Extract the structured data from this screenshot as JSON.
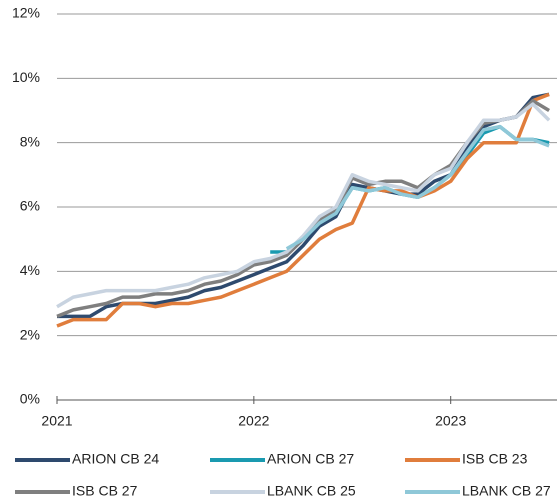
{
  "chart_data": {
    "type": "line",
    "x": [
      2021,
      2021.083,
      2021.167,
      2021.25,
      2021.333,
      2021.417,
      2021.5,
      2021.583,
      2021.667,
      2021.75,
      2021.833,
      2021.917,
      2022,
      2022.083,
      2022.167,
      2022.25,
      2022.333,
      2022.417,
      2022.5,
      2022.583,
      2022.667,
      2022.75,
      2022.833,
      2022.917,
      2023,
      2023.083,
      2023.167,
      2023.25,
      2023.333,
      2023.417,
      2023.5
    ],
    "series": [
      {
        "name": "ARION CB 24",
        "color": "#2e4a6e",
        "values": [
          2.6,
          2.6,
          2.6,
          2.9,
          3.0,
          3.0,
          3.0,
          3.1,
          3.2,
          3.4,
          3.5,
          3.7,
          3.9,
          4.1,
          4.3,
          4.8,
          5.4,
          5.7,
          6.7,
          6.6,
          6.5,
          6.4,
          6.4,
          6.8,
          7.0,
          7.8,
          8.5,
          8.7,
          8.8,
          9.4,
          9.5
        ]
      },
      {
        "name": "ARION CB 27",
        "color": "#1a9ab0",
        "values": [
          null,
          null,
          null,
          null,
          null,
          null,
          null,
          null,
          null,
          null,
          null,
          null,
          null,
          4.6,
          4.6,
          5.0,
          5.5,
          5.8,
          6.6,
          6.5,
          6.6,
          6.4,
          6.3,
          6.6,
          7.0,
          7.6,
          8.3,
          8.5,
          8.1,
          8.1,
          8.0
        ]
      },
      {
        "name": "ISB CB 23",
        "color": "#e07d3c",
        "values": [
          2.3,
          2.5,
          2.5,
          2.5,
          3.0,
          3.0,
          2.9,
          3.0,
          3.0,
          3.1,
          3.2,
          3.4,
          3.6,
          3.8,
          4.0,
          4.5,
          5.0,
          5.3,
          5.5,
          6.6,
          6.5,
          6.5,
          6.3,
          6.5,
          6.8,
          7.5,
          8.0,
          8.0,
          8.0,
          9.3,
          9.5
        ]
      },
      {
        "name": "ISB CB 27",
        "color": "#7f7f7f",
        "values": [
          2.6,
          2.8,
          2.9,
          3.0,
          3.2,
          3.2,
          3.3,
          3.3,
          3.4,
          3.6,
          3.7,
          3.9,
          4.2,
          4.3,
          4.5,
          5.0,
          5.6,
          5.9,
          6.9,
          6.7,
          6.8,
          6.8,
          6.6,
          7.0,
          7.3,
          8.0,
          8.6,
          8.7,
          8.8,
          9.3,
          9.0
        ]
      },
      {
        "name": "LBANK CB 25",
        "color": "#c8d3e0",
        "values": [
          2.9,
          3.2,
          3.3,
          3.4,
          3.4,
          3.4,
          3.4,
          3.5,
          3.6,
          3.8,
          3.9,
          4.0,
          4.3,
          4.4,
          4.6,
          5.1,
          5.7,
          6.0,
          7.0,
          6.8,
          6.7,
          6.6,
          6.5,
          7.0,
          7.2,
          8.0,
          8.7,
          8.7,
          8.8,
          9.2,
          8.7
        ]
      },
      {
        "name": "LBANK CB 27",
        "color": "#8fc8d8",
        "values": [
          null,
          null,
          null,
          null,
          null,
          null,
          null,
          null,
          null,
          null,
          null,
          null,
          null,
          null,
          4.7,
          5.0,
          5.5,
          5.8,
          6.6,
          6.5,
          6.6,
          6.4,
          6.3,
          6.6,
          7.0,
          7.7,
          8.4,
          8.5,
          8.1,
          8.1,
          7.9
        ]
      }
    ],
    "xlim": [
      2021,
      2023.54
    ],
    "xticks": [
      2021,
      2022,
      2023
    ],
    "ylim": [
      0,
      12
    ],
    "yticks": [
      {
        "value": 0,
        "label": "0%"
      },
      {
        "value": 2,
        "label": "2%"
      },
      {
        "value": 4,
        "label": "4%"
      },
      {
        "value": 6,
        "label": "6%"
      },
      {
        "value": 8,
        "label": "8%"
      },
      {
        "value": 10,
        "label": "10%"
      },
      {
        "value": 12,
        "label": "12%"
      }
    ],
    "grid": true,
    "legend": "bottom"
  }
}
